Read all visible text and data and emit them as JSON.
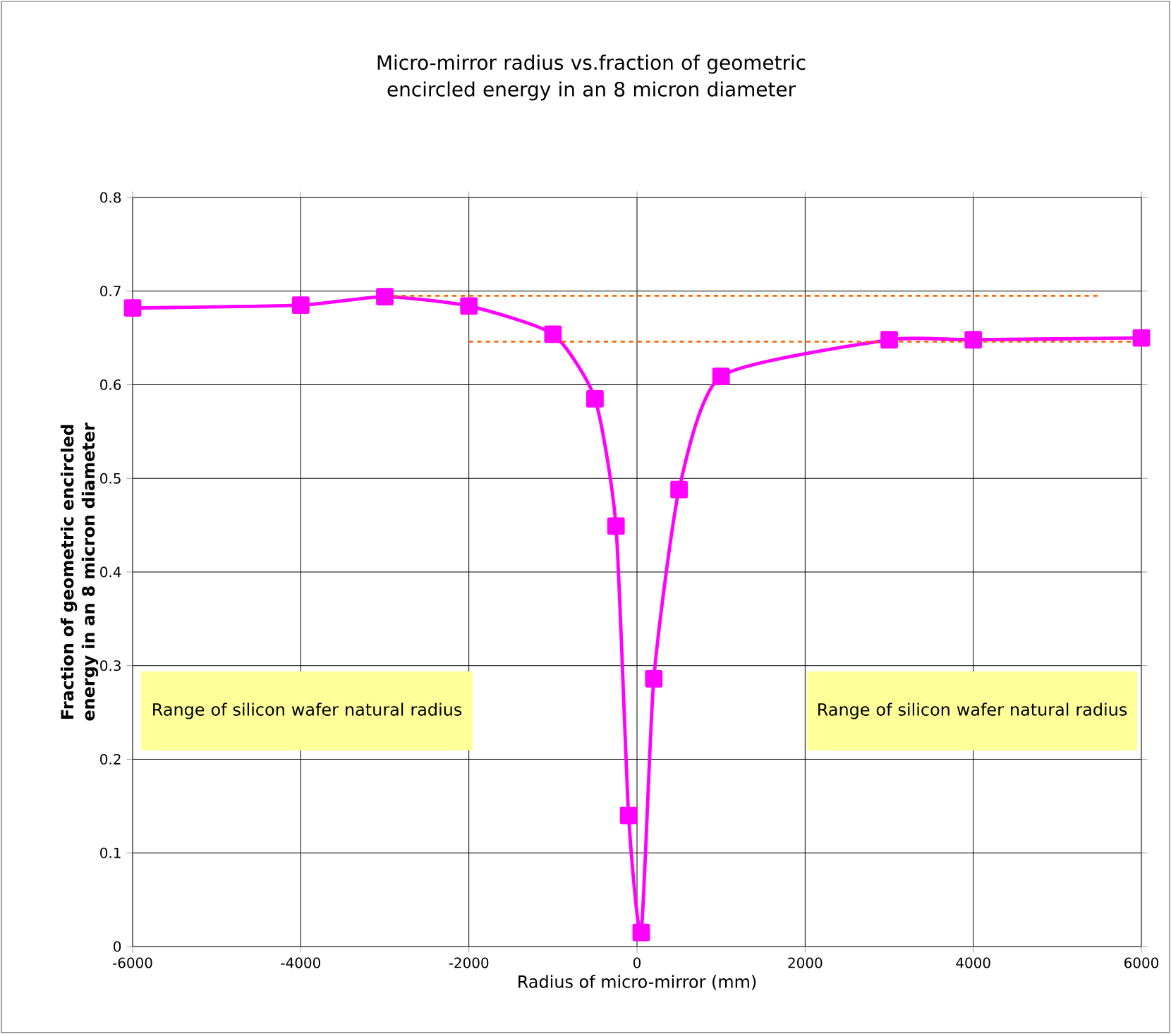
{
  "chart_data": {
    "type": "line",
    "title": "Micro-mirror radius vs.fraction of geometric encircled energy in an 8 micron diameter",
    "xlabel": "Radius of micro-mirror (mm)",
    "ylabel": "Fraction of geometric encircled energy in an 8 micron diameter",
    "xlim": [
      -6000,
      6000
    ],
    "ylim": [
      0,
      0.8
    ],
    "xticks": [
      -6000,
      -4000,
      -2000,
      0,
      2000,
      4000,
      6000
    ],
    "yticks": [
      0,
      0.1,
      0.2,
      0.3,
      0.4,
      0.5,
      0.6,
      0.7,
      0.8
    ],
    "grid": true,
    "series": [
      {
        "color": "#ff00ff",
        "marker": "square",
        "line_style": "solid",
        "x": [
          -6000,
          -4000,
          -3000,
          -2000,
          -1000,
          -500,
          -250,
          -100,
          50,
          200,
          500,
          1000,
          3000,
          4000,
          6000
        ],
        "values": [
          0.682,
          0.685,
          0.694,
          0.684,
          0.654,
          0.585,
          0.449,
          0.14,
          0.015,
          0.286,
          0.488,
          0.609,
          0.648,
          0.648,
          0.65
        ]
      },
      {
        "color": "#ff6600",
        "marker": "none",
        "line_style": "dashed",
        "x": [
          -3000,
          5500
        ],
        "values": [
          0.695,
          0.695
        ]
      },
      {
        "color": "#ff6600",
        "marker": "none",
        "line_style": "dashed",
        "x": [
          -2000,
          6000
        ],
        "values": [
          0.646,
          0.646
        ]
      }
    ],
    "annotations": [
      "Range of silicon wafer natural radius",
      "Range of silicon wafer natural radius"
    ]
  }
}
